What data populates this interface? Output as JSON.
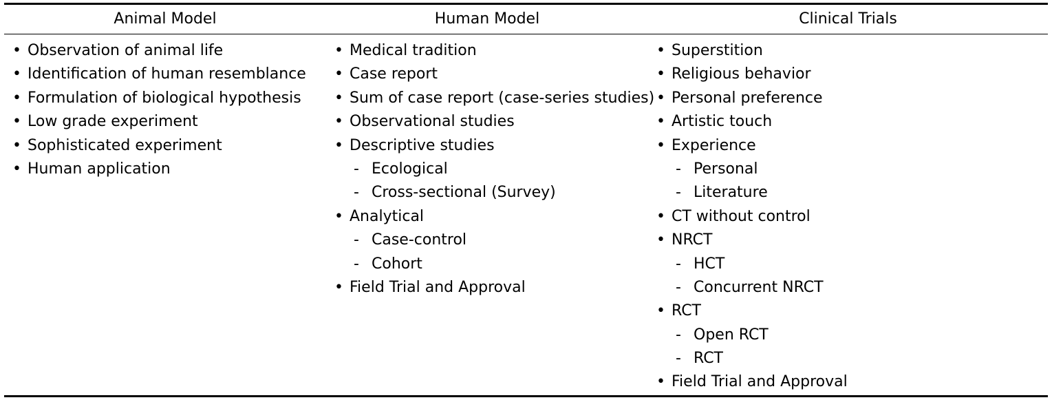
{
  "table": {
    "headers": [
      "Animal Model",
      "Human Model",
      "Clinical Trials"
    ],
    "columns": [
      [
        {
          "level": 1,
          "text": "Observation of animal life"
        },
        {
          "level": 1,
          "text": "Identification of human resemblance"
        },
        {
          "level": 1,
          "text": "Formulation of biological hypothesis"
        },
        {
          "level": 1,
          "text": "Low grade experiment"
        },
        {
          "level": 1,
          "text": "Sophisticated experiment"
        },
        {
          "level": 1,
          "text": "Human application"
        }
      ],
      [
        {
          "level": 1,
          "text": "Medical tradition"
        },
        {
          "level": 1,
          "text": "Case report"
        },
        {
          "level": 1,
          "text": "Sum of case report (case-series studies)"
        },
        {
          "level": 1,
          "text": "Observational studies"
        },
        {
          "level": 1,
          "text": "Descriptive studies"
        },
        {
          "level": 2,
          "text": "Ecological"
        },
        {
          "level": 2,
          "text": "Cross-sectional (Survey)"
        },
        {
          "level": 1,
          "text": "Analytical"
        },
        {
          "level": 2,
          "text": "Case-control"
        },
        {
          "level": 2,
          "text": "Cohort"
        },
        {
          "level": 1,
          "text": "Field Trial and Approval"
        }
      ],
      [
        {
          "level": 1,
          "text": "Superstition"
        },
        {
          "level": 1,
          "text": "Religious behavior"
        },
        {
          "level": 1,
          "text": "Personal preference"
        },
        {
          "level": 1,
          "text": "Artistic touch"
        },
        {
          "level": 1,
          "text": "Experience"
        },
        {
          "level": 2,
          "text": "Personal"
        },
        {
          "level": 2,
          "text": "Literature"
        },
        {
          "level": 1,
          "text": "CT without control"
        },
        {
          "level": 1,
          "text": "NRCT"
        },
        {
          "level": 2,
          "text": "HCT"
        },
        {
          "level": 2,
          "text": "Concurrent NRCT"
        },
        {
          "level": 1,
          "text": "RCT"
        },
        {
          "level": 2,
          "text": "Open RCT"
        },
        {
          "level": 2,
          "text": "RCT"
        },
        {
          "level": 1,
          "text": "Field Trial and Approval"
        }
      ]
    ]
  }
}
